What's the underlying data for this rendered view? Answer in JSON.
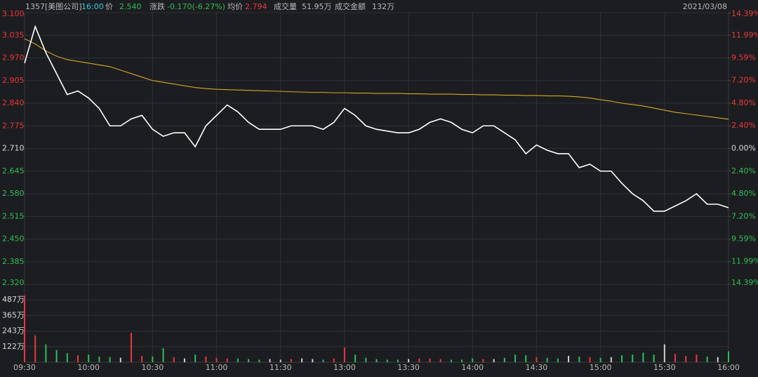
{
  "header": {
    "code": "1357[美图公司]",
    "time": "16:00",
    "price_label": "价",
    "price": "2.540",
    "change_label": "涨跌",
    "change": "-0.170(-6.27%)",
    "avg_label": "均价",
    "avg": "2.794",
    "volume_label": "成交量",
    "volume": "51.95万",
    "turnover_label": "成交金额",
    "turnover": "132万",
    "date": "2021/03/08"
  },
  "chart_data": [
    {
      "type": "line",
      "categories": [
        "09:30",
        null,
        null,
        null,
        null,
        null,
        "10:00",
        null,
        null,
        null,
        null,
        null,
        "10:30",
        null,
        null,
        null,
        null,
        null,
        "11:00",
        null,
        null,
        null,
        null,
        null,
        "11:30",
        null,
        null,
        null,
        null,
        null,
        "13:00",
        null,
        null,
        null,
        null,
        null,
        "13:30",
        null,
        null,
        null,
        null,
        null,
        "14:00",
        null,
        null,
        null,
        null,
        null,
        "14:30",
        null,
        null,
        null,
        null,
        null,
        "15:00",
        null,
        null,
        null,
        null,
        null,
        "15:30",
        null,
        null,
        null,
        null,
        null,
        "16:00"
      ],
      "series": [
        {
          "name": "price",
          "color": "#ffffff",
          "values": [
            2.955,
            3.06,
            2.985,
            2.925,
            2.865,
            2.875,
            2.855,
            2.825,
            2.775,
            2.775,
            2.795,
            2.805,
            2.765,
            2.745,
            2.755,
            2.755,
            2.715,
            2.775,
            2.805,
            2.835,
            2.815,
            2.785,
            2.765,
            2.765,
            2.765,
            2.775,
            2.775,
            2.775,
            2.765,
            2.785,
            2.825,
            2.805,
            2.775,
            2.765,
            2.76,
            2.755,
            2.755,
            2.765,
            2.785,
            2.795,
            2.785,
            2.765,
            2.755,
            2.775,
            2.775,
            2.755,
            2.735,
            2.695,
            2.72,
            2.705,
            2.695,
            2.695,
            2.655,
            2.665,
            2.645,
            2.645,
            2.61,
            2.58,
            2.56,
            2.53,
            2.53,
            2.545,
            2.56,
            2.58,
            2.55,
            2.55,
            2.54
          ]
        },
        {
          "name": "average",
          "color": "#d6a72a",
          "values": [
            3.025,
            3.01,
            2.99,
            2.975,
            2.965,
            2.96,
            2.955,
            2.95,
            2.945,
            2.935,
            2.925,
            2.915,
            2.905,
            2.9,
            2.895,
            2.89,
            2.885,
            2.882,
            2.88,
            2.879,
            2.878,
            2.877,
            2.876,
            2.875,
            2.874,
            2.873,
            2.872,
            2.871,
            2.871,
            2.87,
            2.87,
            2.869,
            2.869,
            2.868,
            2.868,
            2.868,
            2.867,
            2.867,
            2.866,
            2.866,
            2.866,
            2.865,
            2.865,
            2.864,
            2.864,
            2.863,
            2.863,
            2.862,
            2.862,
            2.861,
            2.861,
            2.86,
            2.858,
            2.855,
            2.85,
            2.846,
            2.84,
            2.836,
            2.832,
            2.826,
            2.82,
            2.814,
            2.81,
            2.806,
            2.802,
            2.798,
            2.794
          ]
        }
      ],
      "ylim": [
        2.32,
        3.1
      ],
      "yticks": [
        {
          "value": 3.1,
          "label": "3.100"
        },
        3.035,
        {
          "value": 2.97,
          "label": "2.970"
        },
        2.905,
        {
          "value": 2.84,
          "label": "2.840"
        },
        2.775,
        {
          "value": 2.71,
          "label": "2.710"
        },
        2.645,
        {
          "value": 2.58,
          "label": "2.580"
        },
        2.515,
        {
          "value": 2.45,
          "label": "2.450"
        },
        2.385,
        {
          "value": 2.32,
          "label": "2.320"
        }
      ],
      "y2lim": [
        -14.39,
        14.39
      ],
      "y2ticks": [
        {
          "value": 14.39,
          "label": "14.39%"
        },
        {
          "value": 11.99,
          "label": "11.99%"
        },
        {
          "value": 9.59,
          "label": "9.59%"
        },
        {
          "value": 7.2,
          "label": "7.20%"
        },
        {
          "value": 4.8,
          "label": "4.80%"
        },
        {
          "value": 2.4,
          "label": "2.40%"
        },
        {
          "value": 0,
          "label": "0.00%"
        },
        {
          "value": -2.4,
          "label": "2.40%"
        },
        {
          "value": -4.8,
          "label": "4.80%"
        },
        {
          "value": -7.2,
          "label": "7.20%"
        },
        {
          "value": -9.59,
          "label": "9.59%"
        },
        {
          "value": -11.99,
          "label": "11.99%"
        },
        {
          "value": -14.39,
          "label": "14.39%"
        }
      ],
      "grid": true
    },
    {
      "type": "bar",
      "values": [
        520,
        210,
        140,
        95,
        70,
        55,
        60,
        45,
        40,
        35,
        230,
        50,
        45,
        110,
        40,
        30,
        60,
        45,
        35,
        30,
        30,
        25,
        20,
        25,
        20,
        25,
        30,
        25,
        20,
        30,
        115,
        60,
        35,
        25,
        20,
        20,
        25,
        30,
        30,
        25,
        20,
        20,
        30,
        25,
        25,
        35,
        60,
        55,
        40,
        35,
        30,
        50,
        45,
        40,
        35,
        40,
        55,
        60,
        75,
        60,
        140,
        65,
        50,
        60,
        45,
        40,
        85
      ],
      "ylim": [
        0,
        609
      ],
      "yticks": [
        {
          "value": 487,
          "label": "487万"
        },
        {
          "value": 365,
          "label": "365万"
        },
        {
          "value": 243,
          "label": "243万"
        },
        {
          "value": 122,
          "label": "122万"
        }
      ],
      "up_color": "#e8383d",
      "down_color": "#2fbd5a",
      "flat_color": "#cfcfcf"
    }
  ]
}
